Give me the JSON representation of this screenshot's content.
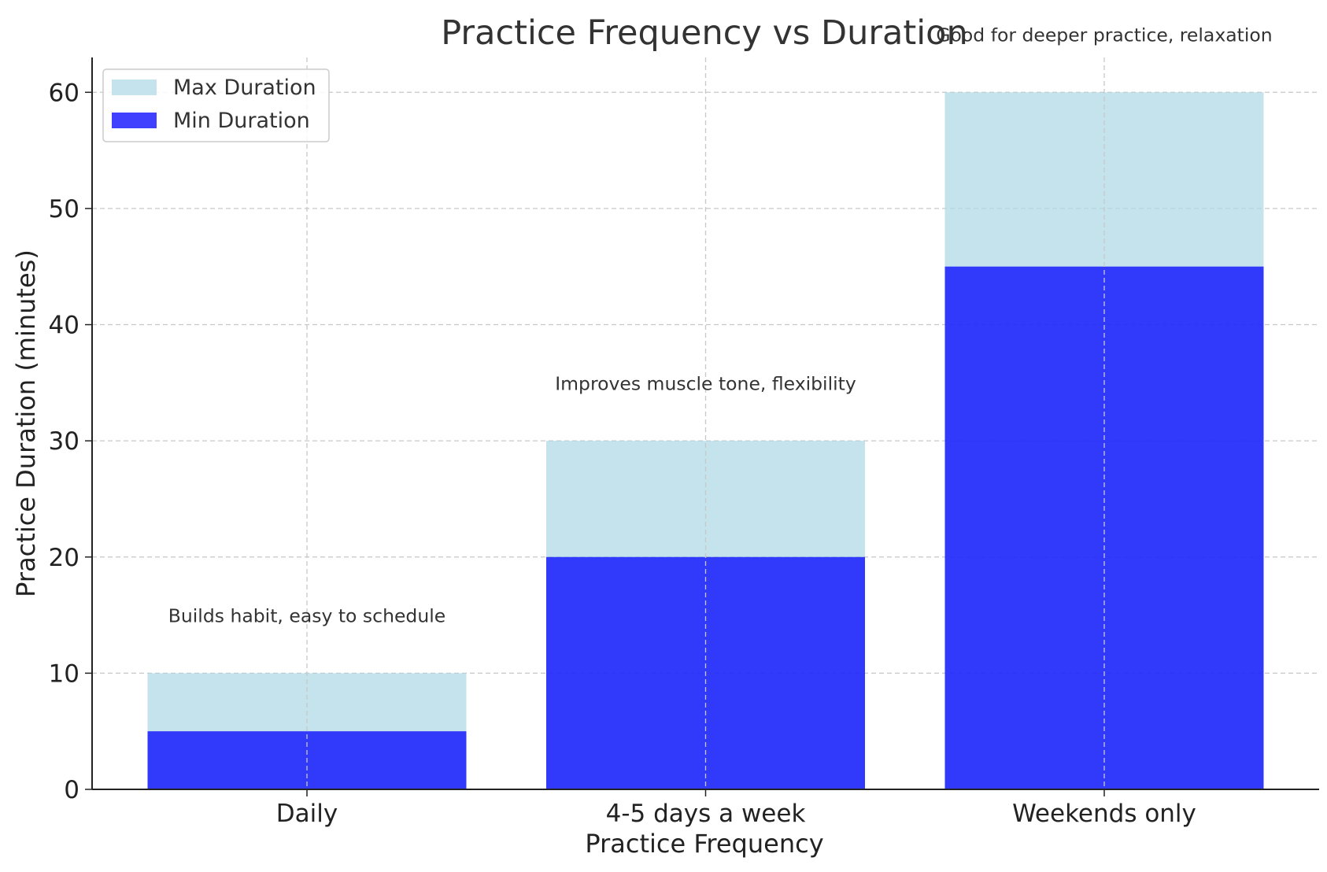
{
  "chart_data": {
    "type": "bar",
    "stacked": false,
    "overlapped": true,
    "title": "Practice Frequency vs Duration",
    "xlabel": "Practice Frequency",
    "ylabel": "Practice Duration (minutes)",
    "categories": [
      "Daily",
      "4-5 days a week",
      "Weekends only"
    ],
    "series": [
      {
        "name": "Max Duration",
        "values": [
          10,
          30,
          60
        ],
        "color": "#add8e6"
      },
      {
        "name": "Min Duration",
        "values": [
          5,
          20,
          45
        ],
        "color": "#0000ff"
      }
    ],
    "annotations": [
      {
        "text": "Builds habit, easy to schedule",
        "category": "Daily",
        "y": 15
      },
      {
        "text": "Improves muscle tone, flexibility",
        "category": "4-5 days a week",
        "y": 35
      },
      {
        "text": "Good for deeper practice, relaxation",
        "category": "Weekends only",
        "y": 65
      }
    ],
    "ylim": [
      0,
      63
    ],
    "yticks": [
      0,
      10,
      20,
      30,
      40,
      50,
      60
    ],
    "grid": true,
    "legend": "top-left"
  }
}
